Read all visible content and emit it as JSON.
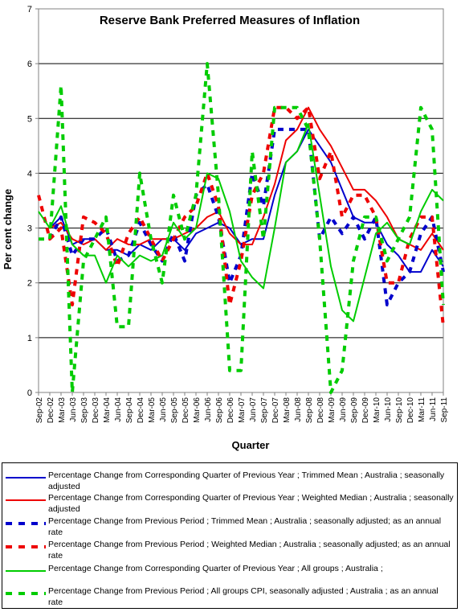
{
  "chart_data": {
    "type": "line",
    "title": "Reserve Bank Preferred Measures of Inflation",
    "xlabel": "Quarter",
    "ylabel": "Per cent change",
    "ylim": [
      0,
      7
    ],
    "yticks": [
      0,
      1,
      2,
      3,
      4,
      5,
      6,
      7
    ],
    "grid": "horizontal",
    "legend_position": "bottom",
    "categories": [
      "Sep-02",
      "Dec-02",
      "Mar-03",
      "Jun-03",
      "Sep-03",
      "Dec-03",
      "Mar-04",
      "Jun-04",
      "Sep-04",
      "Dec-04",
      "Mar-05",
      "Jun-05",
      "Sep-05",
      "Dec-05",
      "Mar-06",
      "Jun-06",
      "Sep-06",
      "Dec-06",
      "Mar-07",
      "Jun-07",
      "Sep-07",
      "Dec-07",
      "Mar-08",
      "Jun-08",
      "Sep-08",
      "Dec-08",
      "Mar-09",
      "Jun-09",
      "Sep-09",
      "Dec-09",
      "Mar-10",
      "Jun-10",
      "Sep-10",
      "Dec-10",
      "Mar-11",
      "Jun-11",
      "Sep-11"
    ],
    "series": [
      {
        "name": "Percentage Change from Corresponding Quarter of Previous Year ;  Trimmed Mean ;  Australia ; seasonally adjusted",
        "color": "#0000cc",
        "dash": "solid",
        "values": [
          null,
          3.0,
          3.2,
          2.7,
          2.8,
          2.8,
          2.6,
          2.6,
          2.5,
          2.7,
          2.6,
          2.8,
          2.8,
          2.6,
          2.9,
          3.0,
          3.1,
          3.0,
          2.7,
          2.8,
          2.8,
          3.6,
          4.2,
          4.4,
          4.8,
          4.5,
          4.2,
          3.7,
          3.2,
          3.1,
          3.1,
          2.7,
          2.5,
          2.2,
          2.2,
          2.6,
          2.3
        ]
      },
      {
        "name": "Percentage Change from Corresponding Quarter of Previous Year ;  Weighted Median ;  Australia ; seasonally adjusted",
        "color": "#ee0000",
        "dash": "solid",
        "values": [
          null,
          3.0,
          3.1,
          2.8,
          2.7,
          2.8,
          2.6,
          2.8,
          2.7,
          2.7,
          2.8,
          2.8,
          2.8,
          2.9,
          3.0,
          3.2,
          3.3,
          2.9,
          2.7,
          2.7,
          3.2,
          3.8,
          4.6,
          4.8,
          5.2,
          4.8,
          4.5,
          4.1,
          3.7,
          3.7,
          3.5,
          3.2,
          2.8,
          2.7,
          2.6,
          2.9,
          2.6
        ]
      },
      {
        "name": "Percentage Change from Previous Period ;  Trimmed Mean ;  Australia ; seasonally adjusted; as an annual rate",
        "color": "#0000cc",
        "dash": "dashed",
        "values": [
          null,
          2.8,
          3.2,
          2.5,
          2.8,
          2.8,
          3.0,
          2.4,
          2.5,
          3.1,
          2.7,
          2.4,
          2.9,
          2.4,
          3.6,
          3.8,
          3.2,
          2.0,
          2.5,
          4.0,
          3.4,
          4.8,
          4.8,
          4.8,
          4.8,
          2.8,
          3.2,
          2.9,
          3.2,
          2.8,
          3.2,
          1.6,
          2.0,
          2.2,
          2.9,
          3.2,
          2.2
        ]
      },
      {
        "name": "Percentage Change from Previous Period ;  Weighted Median ;  Australia ; seasonally adjusted; as an annual rate",
        "color": "#ee0000",
        "dash": "dashed",
        "values": [
          3.6,
          2.8,
          3.0,
          1.6,
          3.2,
          3.1,
          2.9,
          2.3,
          2.9,
          3.2,
          2.8,
          2.4,
          2.8,
          3.2,
          3.4,
          4.0,
          3.4,
          1.6,
          2.4,
          3.6,
          4.0,
          5.2,
          5.2,
          5.0,
          5.2,
          3.9,
          4.4,
          3.2,
          3.6,
          3.6,
          3.2,
          2.0,
          2.0,
          2.8,
          3.2,
          3.2,
          1.2
        ]
      },
      {
        "name": "Percentage Change from Corresponding Quarter of Previous Year ;  All groups ;  Australia ;",
        "color": "#00cc00",
        "dash": "solid",
        "values": [
          3.3,
          3.0,
          3.4,
          2.7,
          2.5,
          2.5,
          2.0,
          2.5,
          2.3,
          2.5,
          2.4,
          2.5,
          3.1,
          2.8,
          3.0,
          4.0,
          3.9,
          3.3,
          2.4,
          2.1,
          1.9,
          3.0,
          4.2,
          4.4,
          4.9,
          3.6,
          2.3,
          1.5,
          1.3,
          2.1,
          2.9,
          3.1,
          2.8,
          2.7,
          3.3,
          3.7,
          3.5
        ]
      },
      {
        "name": "Percentage Change from Previous Period ;  All groups CPI, seasonally adjusted ;  Australia ; as an annual rate",
        "color": "#00cc00",
        "dash": "dashed",
        "values": [
          2.8,
          2.8,
          5.6,
          0.0,
          2.4,
          2.8,
          3.2,
          1.2,
          1.2,
          4.0,
          2.8,
          2.0,
          3.6,
          2.8,
          3.6,
          6.0,
          3.6,
          0.4,
          0.4,
          4.4,
          2.8,
          5.2,
          5.2,
          5.2,
          4.8,
          2.8,
          0.0,
          0.4,
          2.4,
          3.2,
          3.2,
          2.4,
          2.8,
          3.2,
          5.2,
          4.8,
          1.6
        ]
      }
    ]
  }
}
